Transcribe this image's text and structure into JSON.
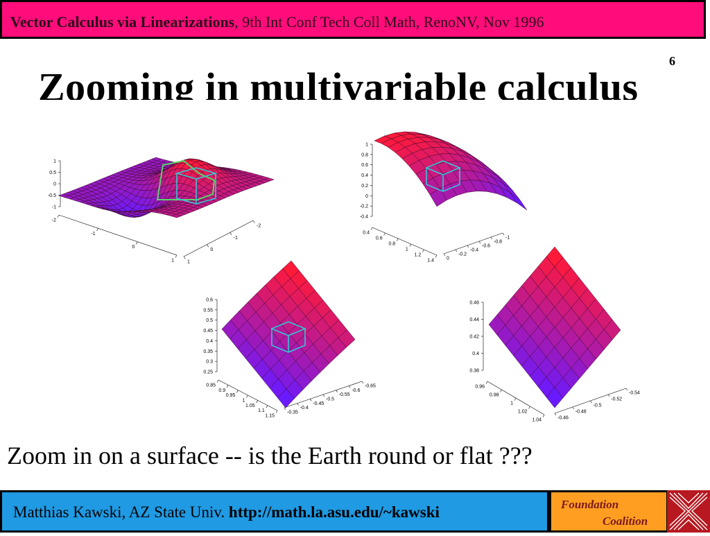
{
  "header": {
    "conference_bold": "Vector Calculus via Linearizations",
    "conference_rest": ", 9th Int Conf Tech Coll Math, RenoNV, Nov 1996"
  },
  "slide_number": "6",
  "title": "Zooming in multivariable calculus",
  "caption": "Zoom in on a surface -- is the Earth round or flat ???",
  "footer": {
    "author": "Matthias Kawski, AZ State Univ. ",
    "url": "http://math.la.asu.edu/~kawski",
    "badge_line1": "Foundation",
    "badge_line2": "Coalition"
  },
  "colors": {
    "banner": "#ff0d7a",
    "footer": "#1f9ae3",
    "badge": "#ff9e21",
    "surface_high": "#ff1a3a",
    "surface_low": "#6a1aff",
    "box": "#33c6d6"
  },
  "plots": [
    {
      "z_ticks": [
        "1",
        "0.5",
        "0",
        "-0.5",
        "-1"
      ],
      "x_ticks": [
        "-2",
        "-1",
        "0",
        "1"
      ],
      "y_ticks": [
        "1",
        "0",
        "-1",
        "-2"
      ]
    },
    {
      "z_ticks": [
        "1",
        "0.8",
        "0.6",
        "0.4",
        "0.2",
        "0",
        "-0.2",
        "-0.4"
      ],
      "x_ticks": [
        "0.4",
        "0.6",
        "0.8",
        "1",
        "1.2",
        "1.4"
      ],
      "y_ticks": [
        "0",
        "-0.2",
        "-0.4",
        "-0.6",
        "-0.8",
        "-1"
      ]
    },
    {
      "z_ticks": [
        "0.6",
        "0.55",
        "0.5",
        "0.45",
        "0.4",
        "0.35",
        "0.3",
        "0.25"
      ],
      "x_ticks": [
        "0.85",
        "0.9",
        "0.95",
        "1",
        "1.05",
        "1.1",
        "1.15"
      ],
      "y_ticks": [
        "-0.35",
        "-0.4",
        "-0.45",
        "-0.5",
        "-0.55",
        "-0.6",
        "-0.65"
      ]
    },
    {
      "z_ticks": [
        "0.46",
        "0.44",
        "0.42",
        "0.4",
        "0.38"
      ],
      "x_ticks": [
        "0.96",
        "0.98",
        "1",
        "1.02",
        "1.04"
      ],
      "y_ticks": [
        "-0.46",
        "-0.48",
        "-0.5",
        "-0.52",
        "-0.54"
      ]
    }
  ]
}
